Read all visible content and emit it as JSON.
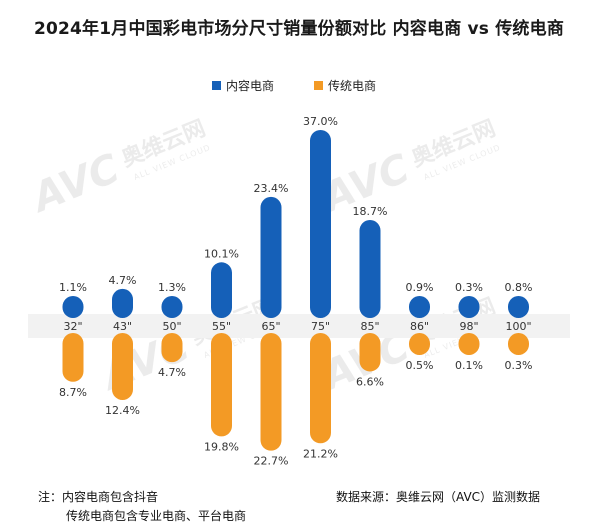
{
  "title": "2024年1月中国彩电市场分尺寸销量份额对比 内容电商 vs 传统电商",
  "watermark": {
    "logo": "AVC",
    "brand": "奥维云网",
    "sub": "ALL VIEW CLOUD"
  },
  "colors": {
    "online": "#1560b8",
    "traditional": "#f39a25",
    "band": "#f2f2f2"
  },
  "notes": {
    "line1": "注：内容电商包含抖音",
    "line2": "传统电商包含专业电商、平台电商",
    "source": "数据来源：奥维云网（AVC）监测数据"
  },
  "chart_data": {
    "type": "bar",
    "title": "2024年1月中国彩电市场分尺寸销量份额对比 内容电商 vs 传统电商",
    "categories": [
      "32\"",
      "43\"",
      "50\"",
      "55\"",
      "65\"",
      "75\"",
      "85\"",
      "86\"",
      "98\"",
      "100\""
    ],
    "series": [
      {
        "name": "内容电商",
        "color": "#1560b8",
        "direction": "up",
        "values": [
          1.1,
          4.7,
          1.3,
          10.1,
          23.4,
          37.0,
          18.7,
          0.9,
          0.3,
          0.8
        ],
        "labels": [
          "1.1%",
          "4.7%",
          "1.3%",
          "10.1%",
          "23.4%",
          "37.0%",
          "18.7%",
          "0.9%",
          "0.3%",
          "0.8%"
        ]
      },
      {
        "name": "传统电商",
        "color": "#f39a25",
        "direction": "down",
        "values": [
          8.7,
          12.4,
          4.7,
          19.8,
          22.7,
          21.2,
          6.6,
          0.5,
          0.1,
          0.3
        ],
        "labels": [
          "8.7%",
          "12.4%",
          "4.7%",
          "19.8%",
          "22.7%",
          "21.2%",
          "6.6%",
          "0.5%",
          "0.1%",
          "0.3%"
        ]
      }
    ],
    "unit": "%",
    "legend": "top-center",
    "grid": false
  }
}
